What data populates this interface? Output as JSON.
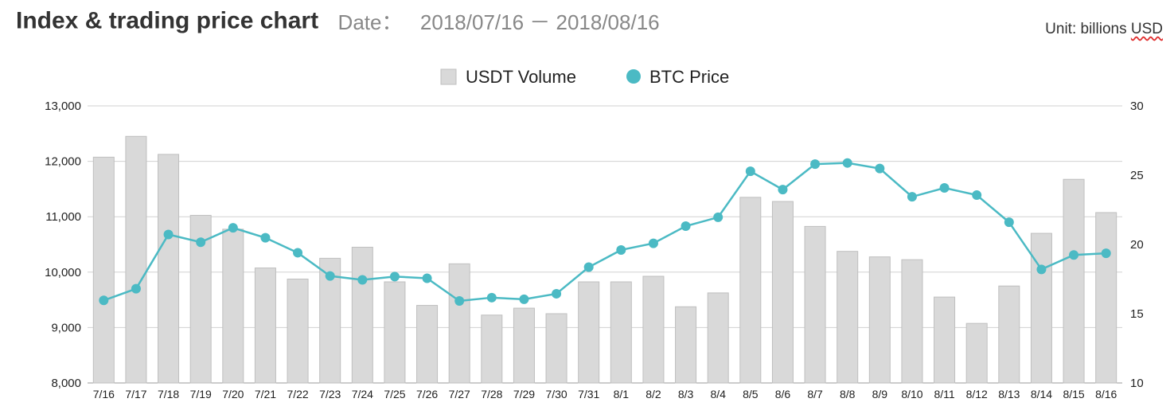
{
  "header": {
    "title": "Index & trading price chart",
    "date_label": "Date：",
    "date_range": "2018/07/16 － 2018/08/16",
    "unit_prefix": "Unit: billions ",
    "unit_word": "USD"
  },
  "colors": {
    "bar_fill": "#d9d9d9",
    "bar_stroke": "#bfbfbf",
    "line": "#4bbac4",
    "grid": "#d0d0d0"
  },
  "chart_data": {
    "type": "bar+line",
    "categories": [
      "7/16",
      "7/17",
      "7/18",
      "7/19",
      "7/20",
      "7/21",
      "7/22",
      "7/23",
      "7/24",
      "7/25",
      "7/26",
      "7/27",
      "7/28",
      "7/29",
      "7/30",
      "7/31",
      "8/1",
      "8/2",
      "8/3",
      "8/4",
      "8/5",
      "8/6",
      "8/7",
      "8/8",
      "8/9",
      "8/10",
      "8/11",
      "8/12",
      "8/13",
      "8/14",
      "8/15",
      "8/16"
    ],
    "legend": [
      "USDT Volume",
      "BTC Price"
    ],
    "legend_position": "top-center",
    "grid": true,
    "y_left": {
      "range": [
        8000,
        13000
      ],
      "ticks": [
        "8,000",
        "9,000",
        "10,000",
        "11,000",
        "12,000",
        "13,000"
      ]
    },
    "y_right": {
      "range": [
        10,
        30
      ],
      "ticks": [
        "10",
        "15",
        "20",
        "25",
        "30"
      ]
    },
    "series": [
      {
        "name": "USDT Volume",
        "type": "bar",
        "axis": "right",
        "values": [
          26.3,
          27.8,
          26.5,
          22.1,
          21.1,
          18.3,
          17.5,
          19.0,
          19.8,
          17.3,
          15.6,
          18.6,
          14.9,
          15.4,
          15.0,
          17.3,
          17.3,
          17.7,
          15.5,
          16.5,
          23.4,
          23.1,
          21.3,
          19.5,
          19.1,
          18.9,
          16.2,
          14.3,
          17.0,
          20.8,
          24.7,
          22.3
        ]
      },
      {
        "name": "BTC Price",
        "type": "line",
        "axis": "left",
        "values": [
          9490,
          9700,
          10680,
          10540,
          10800,
          10620,
          10350,
          9930,
          9860,
          9920,
          9890,
          9480,
          9540,
          9510,
          9610,
          10090,
          10400,
          10520,
          10830,
          10990,
          11820,
          11490,
          11950,
          11970,
          11870,
          11360,
          11520,
          11390,
          10900,
          10050,
          10310,
          10340
        ]
      }
    ]
  }
}
